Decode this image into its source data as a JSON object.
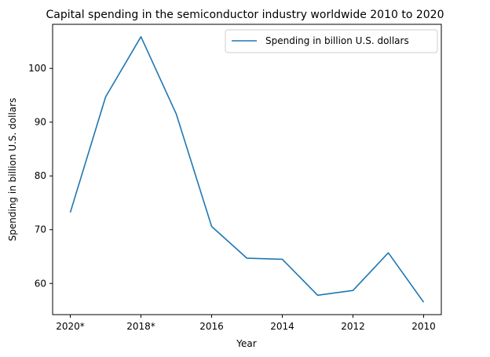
{
  "chart_data": {
    "type": "line",
    "title": "Capital spending in the semiconductor industry worldwide 2010 to 2020",
    "xlabel": "Year",
    "ylabel": "Spending in billion U.S. dollars",
    "categories": [
      "2020*",
      "2019*",
      "2018*",
      "2017",
      "2016",
      "2015",
      "2014",
      "2013",
      "2012",
      "2011",
      "2010"
    ],
    "x_tick_labels": [
      "2020*",
      "2018*",
      "2016",
      "2014",
      "2012",
      "2010"
    ],
    "y_ticks": [
      60,
      70,
      80,
      90,
      100
    ],
    "ylim": [
      54.2,
      108.2
    ],
    "series": [
      {
        "name": "Spending in billion U.S. dollars",
        "color": "#1f77b4",
        "values": [
          73.2,
          94.7,
          105.9,
          91.5,
          70.6,
          64.7,
          64.5,
          57.8,
          58.7,
          65.7,
          56.5
        ]
      }
    ],
    "grid": false,
    "legend_position": "top-right"
  }
}
